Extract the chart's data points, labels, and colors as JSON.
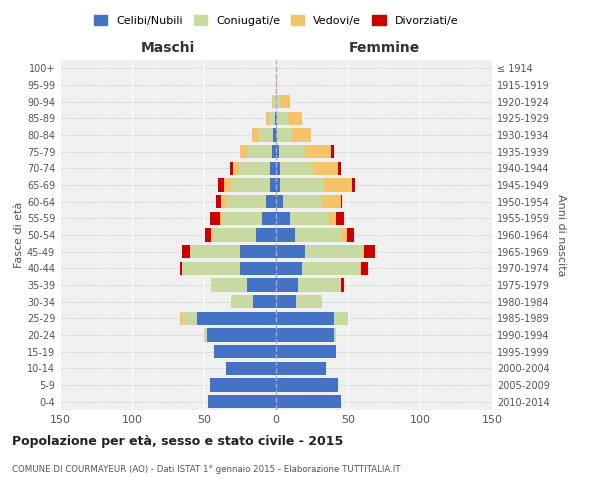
{
  "age_groups": [
    "0-4",
    "5-9",
    "10-14",
    "15-19",
    "20-24",
    "25-29",
    "30-34",
    "35-39",
    "40-44",
    "45-49",
    "50-54",
    "55-59",
    "60-64",
    "65-69",
    "70-74",
    "75-79",
    "80-84",
    "85-89",
    "90-94",
    "95-99",
    "100+"
  ],
  "birth_years": [
    "2010-2014",
    "2005-2009",
    "2000-2004",
    "1995-1999",
    "1990-1994",
    "1985-1989",
    "1980-1984",
    "1975-1979",
    "1970-1974",
    "1965-1969",
    "1960-1964",
    "1955-1959",
    "1950-1954",
    "1945-1949",
    "1940-1944",
    "1935-1939",
    "1930-1934",
    "1925-1929",
    "1920-1924",
    "1915-1919",
    "≤ 1914"
  ],
  "maschi": {
    "celibi": [
      47,
      46,
      35,
      43,
      48,
      55,
      16,
      20,
      25,
      25,
      14,
      10,
      7,
      4,
      4,
      3,
      2,
      1,
      0,
      0,
      0
    ],
    "coniugati": [
      0,
      0,
      0,
      0,
      2,
      10,
      15,
      25,
      40,
      35,
      30,
      27,
      27,
      27,
      22,
      17,
      10,
      4,
      2,
      0,
      0
    ],
    "vedovi": [
      0,
      0,
      0,
      0,
      0,
      2,
      0,
      0,
      0,
      0,
      1,
      2,
      4,
      5,
      4,
      5,
      5,
      2,
      1,
      0,
      0
    ],
    "divorziati": [
      0,
      0,
      0,
      0,
      0,
      0,
      0,
      0,
      2,
      5,
      4,
      7,
      4,
      4,
      2,
      0,
      0,
      0,
      0,
      0,
      0
    ]
  },
  "femmine": {
    "nubili": [
      45,
      43,
      35,
      42,
      40,
      40,
      14,
      15,
      18,
      20,
      13,
      10,
      5,
      3,
      3,
      2,
      1,
      1,
      0,
      0,
      0
    ],
    "coniugate": [
      0,
      0,
      0,
      0,
      2,
      10,
      18,
      30,
      40,
      40,
      32,
      27,
      27,
      30,
      23,
      18,
      10,
      7,
      3,
      0,
      0
    ],
    "vedove": [
      0,
      0,
      0,
      0,
      0,
      0,
      0,
      0,
      1,
      1,
      4,
      5,
      13,
      20,
      17,
      18,
      13,
      10,
      7,
      1,
      0
    ],
    "divorziate": [
      0,
      0,
      0,
      0,
      0,
      0,
      0,
      2,
      5,
      8,
      5,
      5,
      1,
      2,
      2,
      2,
      0,
      0,
      0,
      0,
      0
    ]
  },
  "colors": {
    "celibi": "#4472C4",
    "coniugati": "#c8d9a2",
    "vedovi": "#f5c36a",
    "divorziati": "#cc0000"
  },
  "title": "Popolazione per età, sesso e stato civile - 2015",
  "subtitle": "COMUNE DI COURMAYEUR (AO) - Dati ISTAT 1° gennaio 2015 - Elaborazione TUTTITALIA.IT",
  "ylabel_left": "Fasce di età",
  "ylabel_right": "Anni di nascita",
  "xlabel_maschi": "Maschi",
  "xlabel_femmine": "Femmine",
  "legend_labels": [
    "Celibi/Nubili",
    "Coniugati/e",
    "Vedovi/e",
    "Divorziati/e"
  ],
  "xlim": 150,
  "background": "#f0f0f0"
}
